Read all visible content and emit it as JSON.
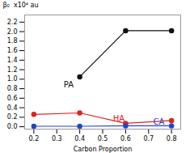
{
  "chart_data": {
    "type": "line",
    "marker": "circle",
    "xlabel": "Carbon Proportion",
    "ylabel": "β₀  x10⁴ au",
    "xlim": [
      0.16,
      0.84
    ],
    "ylim": [
      -0.05,
      2.35
    ],
    "xticks": [
      0.2,
      0.3,
      0.4,
      0.5,
      0.6,
      0.7,
      0.8
    ],
    "yticks": [
      {
        "value": 0.0,
        "label": "0.0"
      },
      0.2,
      0.4,
      0.6,
      0.8,
      {
        "value": 1.0,
        "label": "1.0"
      },
      1.2,
      1.4,
      1.6,
      1.8,
      {
        "value": 2.0,
        "label": "2.0"
      },
      2.2
    ],
    "series": [
      {
        "color": "#111111",
        "x": [
          0.4,
          0.6,
          0.8
        ],
        "values": [
          1.05,
          2.02,
          2.02
        ]
      },
      {
        "color": "#dd2222",
        "x": [
          0.2,
          0.4,
          0.6,
          0.8
        ],
        "values": [
          0.26,
          0.29,
          0.07,
          0.13
        ]
      },
      {
        "color": "#2244cc",
        "x": [
          0.2,
          0.4,
          0.6,
          0.8
        ],
        "values": [
          0.01,
          0.01,
          0.02,
          0.02
        ]
      }
    ],
    "annotations": [
      {
        "text": "PA",
        "x": 0.33,
        "y": 0.82,
        "color": "#111111"
      },
      {
        "text": "HA",
        "x": 0.545,
        "y": 0.115,
        "color": "#dd2222"
      },
      {
        "text": "CA",
        "x": 0.72,
        "y": 0.045,
        "color": "#2244cc"
      }
    ]
  }
}
